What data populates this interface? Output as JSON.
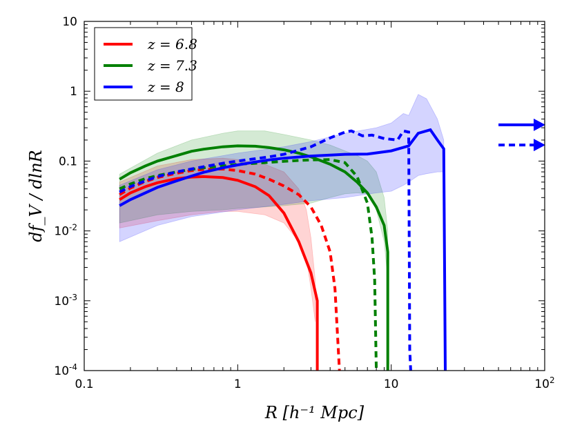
{
  "chart_data": {
    "type": "line",
    "title": "",
    "xlabel": "R [h⁻¹ Mpc]",
    "ylabel": "df_V / dlnR",
    "xscale": "log",
    "yscale": "log",
    "xlim": [
      0.1,
      100
    ],
    "ylim": [
      0.0001,
      10
    ],
    "grid": false,
    "legend_position": "top-left",
    "x_tick_labels": [
      {
        "value": 0.1,
        "label": "0.1",
        "sup": ""
      },
      {
        "value": 1,
        "label": "1",
        "sup": ""
      },
      {
        "value": 10,
        "label": "10",
        "sup": ""
      },
      {
        "value": 100,
        "label": "10",
        "sup": "2"
      }
    ],
    "y_tick_labels": [
      {
        "value": 0.0001,
        "label": "10",
        "sup": "-4"
      },
      {
        "value": 0.001,
        "label": "10",
        "sup": "-3"
      },
      {
        "value": 0.01,
        "label": "10",
        "sup": "-2"
      },
      {
        "value": 0.1,
        "label": "0.1",
        "sup": ""
      },
      {
        "value": 1,
        "label": "1",
        "sup": ""
      },
      {
        "value": 10,
        "label": "10",
        "sup": ""
      }
    ],
    "series": [
      {
        "name": "z = 6.8",
        "color": "#ff0000",
        "style": "solid",
        "x": [
          0.17,
          0.2,
          0.25,
          0.3,
          0.4,
          0.5,
          0.6,
          0.8,
          1.0,
          1.3,
          1.6,
          2.0,
          2.5,
          3.0,
          3.3,
          3.3
        ],
        "y": [
          0.028,
          0.035,
          0.043,
          0.049,
          0.056,
          0.059,
          0.06,
          0.058,
          0.053,
          0.043,
          0.032,
          0.018,
          0.007,
          0.0025,
          0.001,
          0.0001
        ]
      },
      {
        "name": "z = 6.8 (dashed)",
        "color": "#ff0000",
        "style": "dashed",
        "x": [
          0.17,
          0.2,
          0.25,
          0.3,
          0.4,
          0.5,
          0.6,
          0.8,
          1.0,
          1.3,
          1.6,
          2.0,
          2.5,
          3.0,
          3.5,
          4.0,
          4.3,
          4.6
        ],
        "y": [
          0.033,
          0.041,
          0.051,
          0.058,
          0.067,
          0.073,
          0.076,
          0.077,
          0.073,
          0.065,
          0.055,
          0.044,
          0.033,
          0.022,
          0.012,
          0.005,
          0.0015,
          0.0001
        ]
      },
      {
        "name": "z = 7.3",
        "color": "#008000",
        "style": "solid",
        "x": [
          0.17,
          0.2,
          0.25,
          0.3,
          0.4,
          0.5,
          0.6,
          0.8,
          1.0,
          1.3,
          1.6,
          2.0,
          2.5,
          3.0,
          4.0,
          5.0,
          6.0,
          7.0,
          8.0,
          9.0,
          9.5,
          9.5
        ],
        "y": [
          0.055,
          0.068,
          0.085,
          0.1,
          0.12,
          0.138,
          0.148,
          0.16,
          0.165,
          0.163,
          0.156,
          0.145,
          0.13,
          0.115,
          0.09,
          0.07,
          0.05,
          0.035,
          0.022,
          0.012,
          0.005,
          0.0001
        ]
      },
      {
        "name": "z = 7.3 (dashed)",
        "color": "#008000",
        "style": "dashed",
        "x": [
          0.17,
          0.2,
          0.25,
          0.3,
          0.4,
          0.5,
          0.6,
          0.8,
          1.0,
          1.3,
          1.6,
          2.0,
          2.5,
          3.0,
          4.0,
          5.0,
          6.0,
          7.0,
          7.5,
          7.8,
          8.0
        ],
        "y": [
          0.04,
          0.047,
          0.056,
          0.062,
          0.07,
          0.076,
          0.08,
          0.085,
          0.09,
          0.093,
          0.096,
          0.099,
          0.102,
          0.104,
          0.105,
          0.095,
          0.06,
          0.025,
          0.008,
          0.002,
          0.0001
        ]
      },
      {
        "name": "z = 8",
        "color": "#0000ff",
        "style": "solid",
        "x": [
          0.17,
          0.2,
          0.25,
          0.3,
          0.4,
          0.5,
          0.6,
          0.8,
          1.0,
          1.3,
          1.6,
          2.0,
          3.0,
          4.0,
          5.0,
          7.0,
          10.0,
          13.0,
          15.0,
          18.0,
          20.0,
          22.0,
          22.5
        ],
        "y": [
          0.023,
          0.028,
          0.035,
          0.042,
          0.052,
          0.061,
          0.069,
          0.08,
          0.088,
          0.097,
          0.104,
          0.11,
          0.118,
          0.122,
          0.125,
          0.126,
          0.14,
          0.165,
          0.25,
          0.28,
          0.2,
          0.15,
          0.0001
        ]
      },
      {
        "name": "z = 8 (dashed)",
        "color": "#0000ff",
        "style": "dashed",
        "x": [
          0.17,
          0.2,
          0.25,
          0.3,
          0.4,
          0.5,
          0.6,
          0.8,
          1.0,
          1.3,
          1.6,
          2.0,
          3.0,
          4.0,
          5.0,
          5.5,
          6.5,
          7.5,
          9.0,
          11.0,
          12.0,
          13.0,
          13.2,
          13.4
        ],
        "y": [
          0.036,
          0.043,
          0.052,
          0.06,
          0.07,
          0.077,
          0.083,
          0.093,
          0.1,
          0.108,
          0.115,
          0.125,
          0.16,
          0.215,
          0.26,
          0.27,
          0.23,
          0.235,
          0.21,
          0.2,
          0.27,
          0.26,
          0.0002,
          0.0001
        ]
      }
    ],
    "bands": [
      {
        "color": "#ff0000",
        "x": [
          0.17,
          0.3,
          0.5,
          0.8,
          1.0,
          1.5,
          2.0,
          2.5,
          2.8,
          3.0,
          3.2
        ],
        "upper": [
          0.05,
          0.085,
          0.105,
          0.11,
          0.105,
          0.09,
          0.07,
          0.04,
          0.02,
          0.008,
          0.002
        ],
        "lower": [
          0.011,
          0.014,
          0.017,
          0.019,
          0.019,
          0.017,
          0.013,
          0.007,
          0.004,
          0.0015,
          0.0005
        ]
      },
      {
        "color": "#008000",
        "x": [
          0.17,
          0.3,
          0.5,
          0.8,
          1.0,
          1.5,
          2.0,
          3.0,
          4.0,
          5.0,
          6.0,
          7.0,
          8.0,
          9.0,
          9.5
        ],
        "upper": [
          0.065,
          0.13,
          0.2,
          0.25,
          0.27,
          0.27,
          0.24,
          0.2,
          0.17,
          0.14,
          0.12,
          0.1,
          0.07,
          0.03,
          0.01
        ],
        "lower": [
          0.013,
          0.017,
          0.019,
          0.02,
          0.021,
          0.022,
          0.023,
          0.025,
          0.03,
          0.034,
          0.035,
          0.034,
          0.02,
          0.007,
          0.002
        ]
      },
      {
        "color": "#0000ff",
        "x": [
          0.17,
          0.3,
          0.5,
          1.0,
          2.0,
          3.0,
          5.0,
          8.0,
          10.0,
          12.0,
          13.0,
          15.0,
          17.0,
          20.0,
          22.0
        ],
        "upper": [
          0.045,
          0.075,
          0.1,
          0.13,
          0.16,
          0.19,
          0.25,
          0.3,
          0.35,
          0.48,
          0.45,
          0.9,
          0.78,
          0.4,
          0.2
        ],
        "lower": [
          0.007,
          0.012,
          0.016,
          0.02,
          0.024,
          0.027,
          0.03,
          0.035,
          0.037,
          0.045,
          0.05,
          0.062,
          0.066,
          0.07,
          0.07
        ]
      }
    ],
    "arrows": [
      {
        "color": "#0000ff",
        "style": "solid",
        "x_start": 50,
        "y": 0.33
      },
      {
        "color": "#0000ff",
        "style": "dashed",
        "x_start": 50,
        "y": 0.17
      }
    ],
    "legend": [
      {
        "label": "z = 6.8",
        "color": "#ff0000"
      },
      {
        "label": "z = 7.3",
        "color": "#008000"
      },
      {
        "label": "z = 8",
        "color": "#0000ff"
      }
    ]
  }
}
